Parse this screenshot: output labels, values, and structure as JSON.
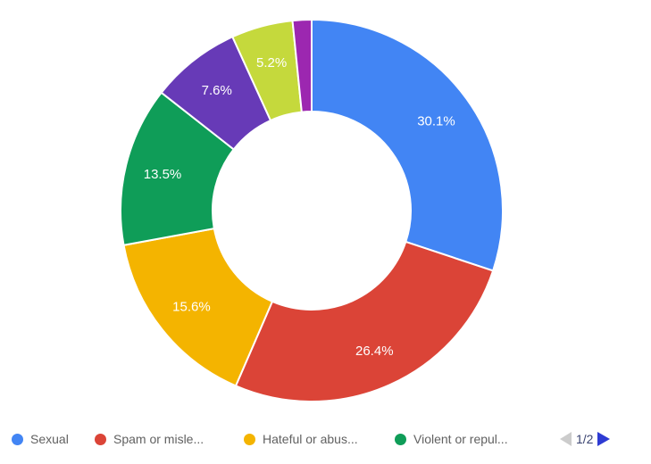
{
  "chart_data": {
    "type": "pie",
    "style": "donut",
    "title": "",
    "total": 100,
    "segments": [
      {
        "value": 30.1,
        "label": "30.1%",
        "color": "#4285F4"
      },
      {
        "value": 26.4,
        "label": "26.4%",
        "color": "#DB4437"
      },
      {
        "value": 15.6,
        "label": "15.6%",
        "color": "#F4B400"
      },
      {
        "value": 13.5,
        "label": "13.5%",
        "color": "#0F9D58"
      },
      {
        "value": 7.6,
        "label": "7.6%",
        "color": "#673AB7"
      },
      {
        "value": 5.2,
        "label": "5.2%",
        "color": "#C5D93C"
      },
      {
        "value": 1.6,
        "label": "",
        "color": "#9C27B0"
      }
    ],
    "label_text_color": "#ffffff",
    "legend_position": "bottom"
  },
  "legend": {
    "items": [
      {
        "label": "Sexual",
        "color": "#4285F4"
      },
      {
        "label": "Spam or misle...",
        "color": "#DB4437"
      },
      {
        "label": "Hateful or abus...",
        "color": "#F4B400"
      },
      {
        "label": "Violent or repul...",
        "color": "#0F9D58"
      }
    ],
    "pagination": {
      "text": "1/2",
      "prev_enabled": false,
      "next_enabled": true,
      "prev_color": "#cccccc",
      "next_color": "#2e3bd3"
    }
  }
}
